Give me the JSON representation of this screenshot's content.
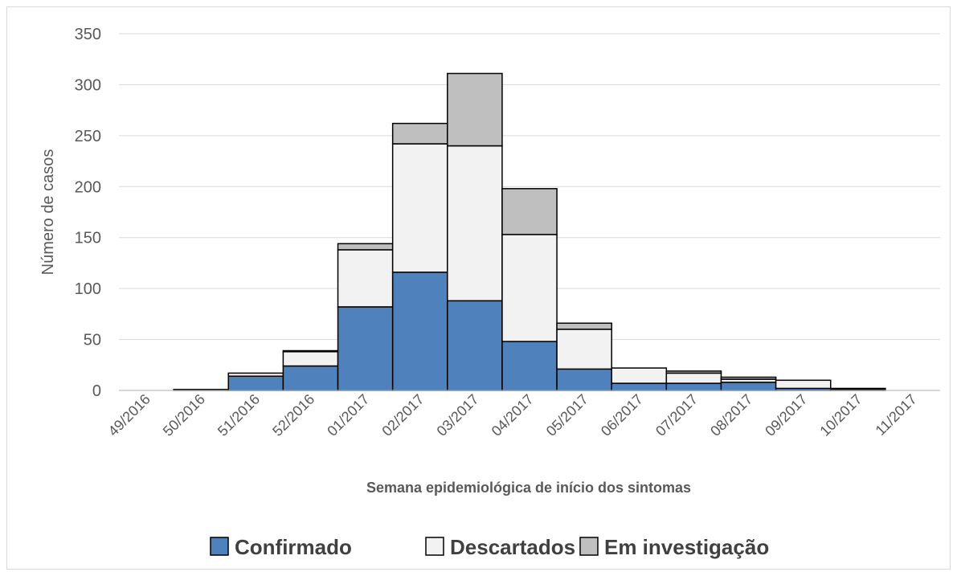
{
  "chart_data": {
    "type": "bar",
    "stacked": true,
    "categories": [
      "49/2016",
      "50/2016",
      "51/2016",
      "52/2016",
      "01/2017",
      "02/2017",
      "03/2017",
      "04/2017",
      "05/2017",
      "06/2017",
      "07/2017",
      "08/2017",
      "09/2017",
      "10/2017",
      "11/2017"
    ],
    "series": [
      {
        "name": "Confirmado",
        "color": "#4f81bd",
        "values": [
          0,
          0,
          14,
          24,
          82,
          116,
          88,
          48,
          21,
          7,
          7,
          8,
          2,
          1,
          0
        ]
      },
      {
        "name": "Descartados",
        "color": "#f2f2f2",
        "values": [
          0,
          1,
          3,
          14,
          56,
          126,
          152,
          105,
          39,
          15,
          10,
          3,
          8,
          1,
          0
        ]
      },
      {
        "name": "Em investigação",
        "color": "#bfbfbf",
        "values": [
          0,
          0,
          0,
          1,
          6,
          20,
          71,
          45,
          6,
          0,
          2,
          2,
          0,
          0,
          0
        ]
      }
    ],
    "xlabel": "Semana epidemiológica de início dos sintomas",
    "ylabel": "Número de casos",
    "ylim": [
      0,
      350
    ],
    "yticks": [
      0,
      50,
      100,
      150,
      200,
      250,
      300,
      350
    ],
    "grid": true,
    "legend": "bottom"
  }
}
